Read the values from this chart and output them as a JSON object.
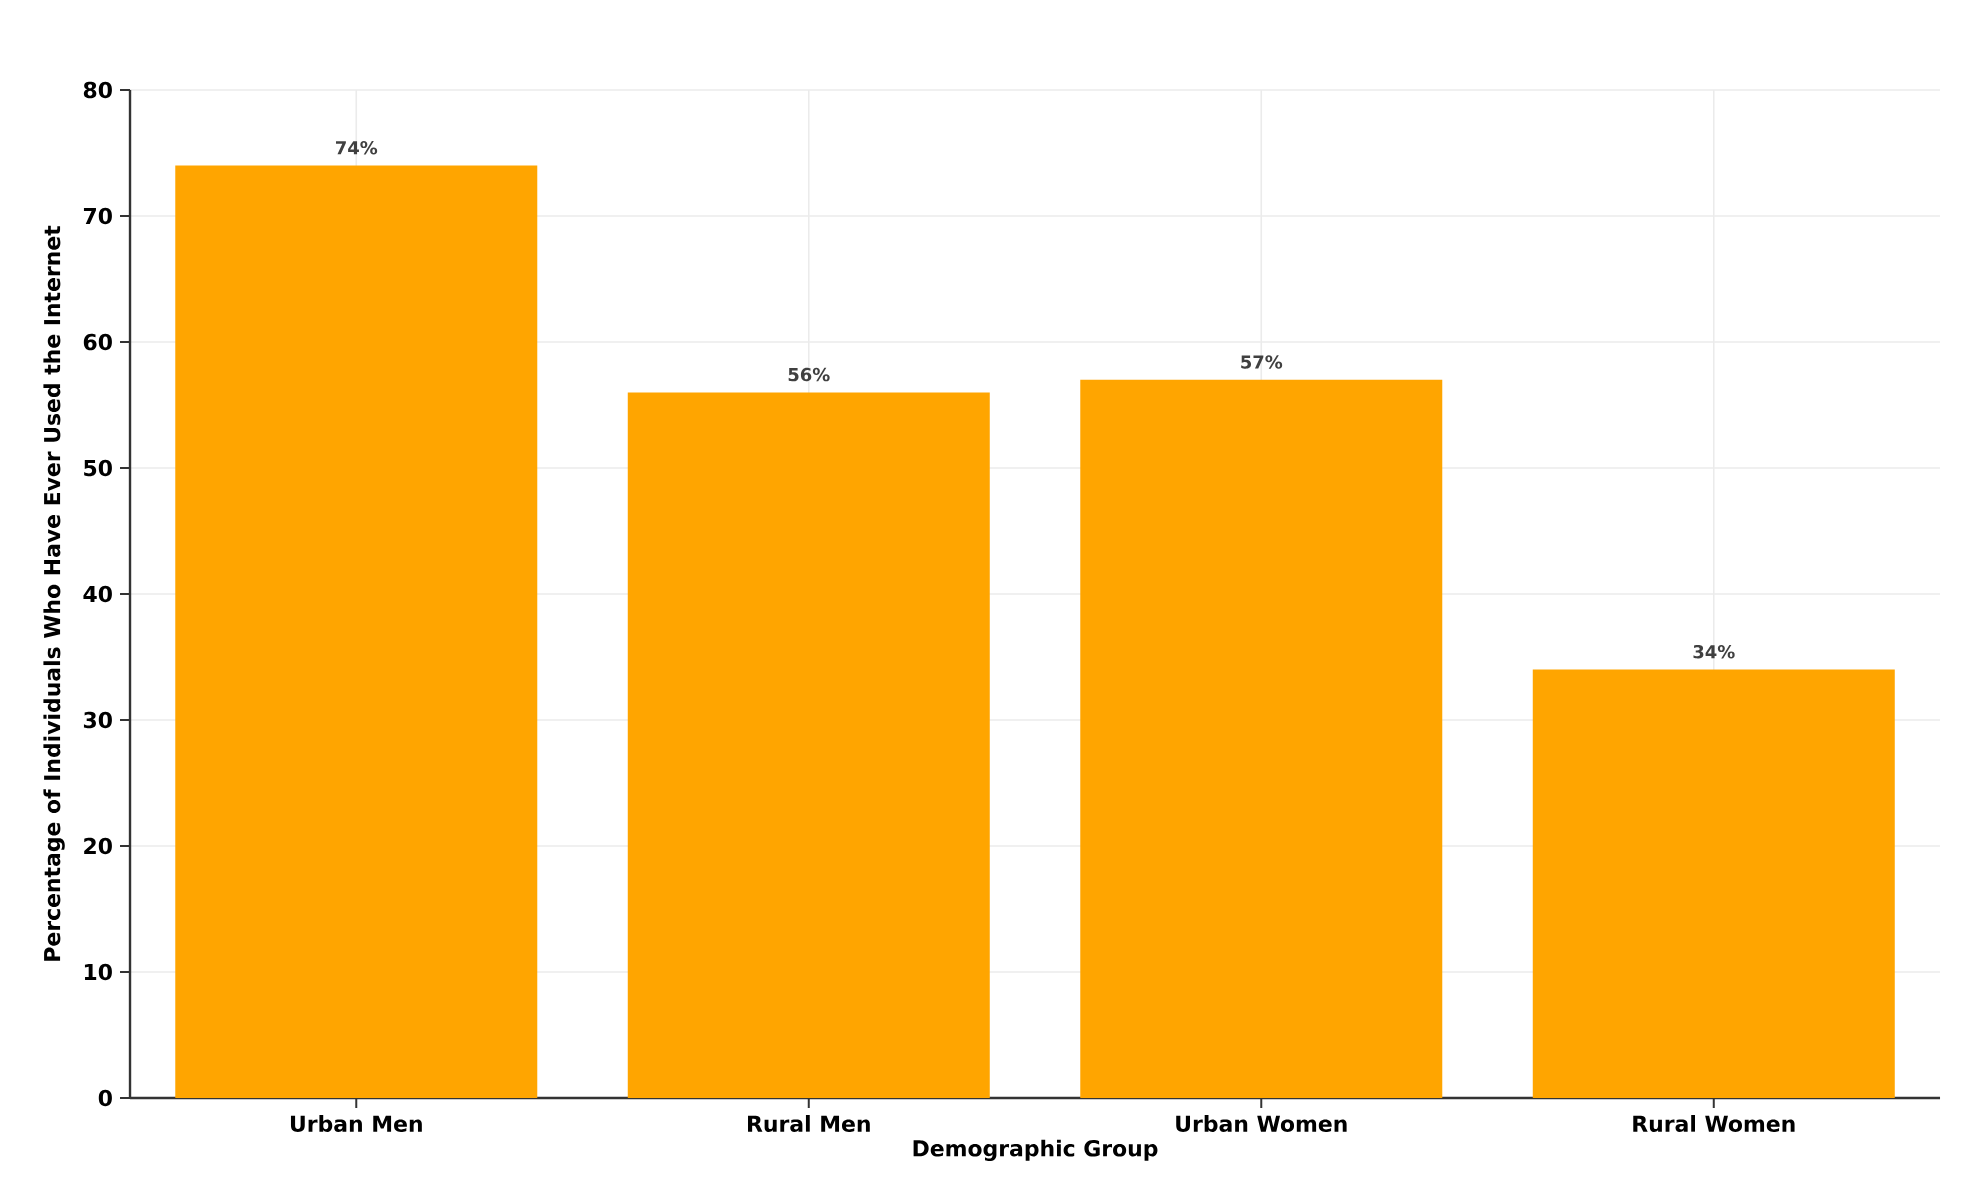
{
  "chart_data": {
    "type": "bar",
    "xlabel": "Demographic Group",
    "ylabel": "Percentage of Individuals Who Have Ever Used the Internet",
    "categories": [
      "Urban Men",
      "Rural Men",
      "Urban Women",
      "Rural Women"
    ],
    "values": [
      74,
      56,
      57,
      34
    ],
    "value_labels": [
      "74%",
      "56%",
      "57%",
      "34%"
    ],
    "color": "#ffa500",
    "ylim": [
      0,
      80
    ],
    "yticks": [
      0,
      10,
      20,
      30,
      40,
      50,
      60,
      70,
      80
    ],
    "grid": true
  }
}
